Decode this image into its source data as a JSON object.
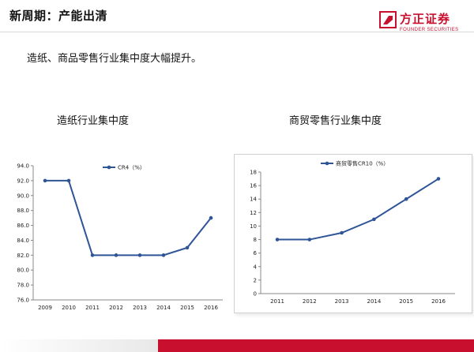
{
  "header": {
    "title": "新周期：产能出清",
    "logo_cn": "方正证券",
    "logo_en": "FOUNDER SECURITIES",
    "brand_color": "#c8102e"
  },
  "subtitle": "造纸、商品零售行业集中度大幅提升。",
  "chart_data": [
    {
      "type": "line",
      "title": "造纸行业集中度",
      "x": [
        "2009",
        "2010",
        "2011",
        "2012",
        "2013",
        "2014",
        "2015",
        "2016"
      ],
      "series": [
        {
          "name": "CR4（%）",
          "values": [
            92,
            92,
            82,
            82,
            82,
            82,
            83,
            87
          ],
          "color": "#2f5597"
        }
      ],
      "ylim": [
        76,
        94
      ],
      "yticks": [
        "76.0",
        "78.0",
        "80.0",
        "82.0",
        "84.0",
        "86.0",
        "88.0",
        "90.0",
        "92.0",
        "94.0"
      ],
      "legend": "top",
      "grid": false
    },
    {
      "type": "line",
      "title": "商贸零售行业集中度",
      "x": [
        "2011",
        "2012",
        "2013",
        "2014",
        "2015",
        "2016"
      ],
      "series": [
        {
          "name": "商贸零售CR10（%）",
          "values": [
            8,
            8,
            9,
            11,
            14,
            17
          ],
          "color": "#2f5597"
        }
      ],
      "ylim": [
        0,
        18
      ],
      "yticks": [
        "0",
        "2",
        "4",
        "6",
        "8",
        "10",
        "12",
        "14",
        "16",
        "18"
      ],
      "legend": "top",
      "grid": false
    }
  ]
}
